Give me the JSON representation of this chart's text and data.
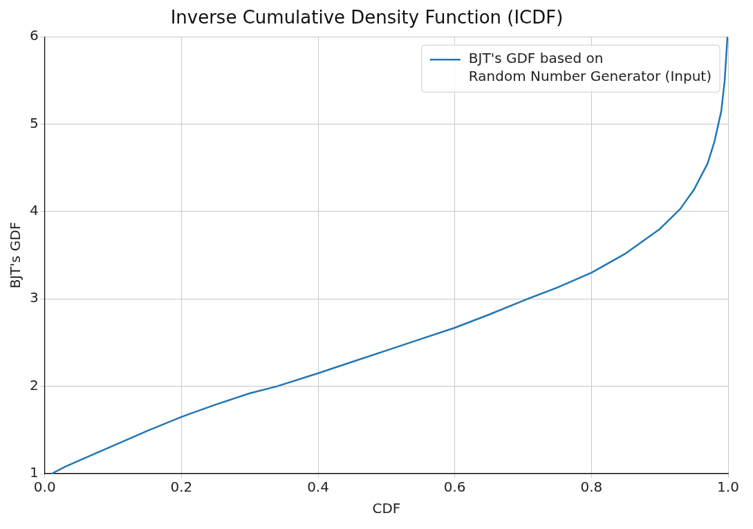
{
  "chart_data": {
    "type": "line",
    "title": "Inverse Cumulative Density Function (ICDF)",
    "xlabel": "CDF",
    "ylabel": "BJT's GDF",
    "x": [
      0.01,
      0.03,
      0.05,
      0.1,
      0.15,
      0.2,
      0.25,
      0.3,
      0.34,
      0.4,
      0.45,
      0.5,
      0.55,
      0.6,
      0.65,
      0.7,
      0.75,
      0.8,
      0.85,
      0.9,
      0.93,
      0.95,
      0.97,
      0.98,
      0.99,
      0.995,
      0.999
    ],
    "series": [
      {
        "name": "BJT's GDF based on\nRandom Number Generator (Input)",
        "color": "#1f77b4",
        "values": [
          1.0,
          1.08,
          1.15,
          1.32,
          1.49,
          1.65,
          1.79,
          1.92,
          2.0,
          2.15,
          2.28,
          2.41,
          2.54,
          2.67,
          2.82,
          2.98,
          3.13,
          3.3,
          3.52,
          3.8,
          4.03,
          4.25,
          4.55,
          4.8,
          5.15,
          5.5,
          6.0
        ]
      }
    ],
    "xlim": [
      0,
      1
    ],
    "xticks": [
      {
        "value": 0,
        "label": "0.0"
      },
      0.2,
      0.4,
      0.6,
      0.8,
      {
        "value": 1,
        "label": "1.0"
      }
    ],
    "ylim": [
      1,
      6
    ],
    "yticks": [
      1,
      2,
      3,
      4,
      5,
      6
    ],
    "grid": true,
    "legend": "top right",
    "marker": "none",
    "line_style": "solid"
  }
}
